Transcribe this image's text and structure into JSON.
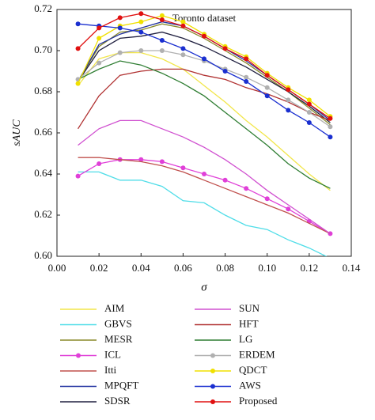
{
  "chart_data": {
    "type": "line",
    "title": "Toronto dataset",
    "x_label": "σ",
    "y_label": "sAUC",
    "x": [
      0.01,
      0.02,
      0.03,
      0.04,
      0.05,
      0.06,
      0.07,
      0.08,
      0.09,
      0.1,
      0.11,
      0.12,
      0.13
    ],
    "xlim": [
      0,
      0.14
    ],
    "xticks": [
      {
        "value": 0,
        "label": "0.00"
      },
      0.02,
      0.04,
      0.06,
      0.08,
      {
        "value": 0.1,
        "label": "0.10"
      },
      0.12,
      0.14
    ],
    "ylim": [
      0.6,
      0.72
    ],
    "yticks": [
      {
        "value": 0.6,
        "label": "0.60"
      },
      0.62,
      0.64,
      0.66,
      0.68,
      {
        "value": 0.7,
        "label": "0.70"
      },
      0.72
    ],
    "series": [
      {
        "name": "AIM",
        "color": "#f2e64a",
        "marker": false,
        "values": [
          0.683,
          0.696,
          0.699,
          0.699,
          0.696,
          0.691,
          0.683,
          0.675,
          0.666,
          0.658,
          0.649,
          0.64,
          0.632
        ]
      },
      {
        "name": "GBVS",
        "color": "#4fdde8",
        "marker": false,
        "values": [
          0.641,
          0.641,
          0.637,
          0.637,
          0.634,
          0.627,
          0.626,
          0.62,
          0.615,
          0.613,
          0.608,
          0.604,
          0.599
        ]
      },
      {
        "name": "MESR",
        "color": "#8a8a2a",
        "marker": false,
        "values": [
          0.685,
          0.702,
          0.709,
          0.71,
          0.713,
          0.711,
          0.706,
          0.7,
          0.694,
          0.687,
          0.68,
          0.672,
          0.664
        ]
      },
      {
        "name": "ICL",
        "color": "#e040d8",
        "marker": true,
        "values": [
          0.639,
          0.645,
          0.647,
          0.647,
          0.646,
          0.643,
          0.64,
          0.637,
          0.633,
          0.628,
          0.623,
          0.617,
          0.611
        ]
      },
      {
        "name": "Itti",
        "color": "#c0504d",
        "marker": false,
        "values": [
          0.648,
          0.648,
          0.647,
          0.646,
          0.644,
          0.641,
          0.637,
          0.633,
          0.629,
          0.625,
          0.621,
          0.616,
          0.611
        ]
      },
      {
        "name": "MPQFT",
        "color": "#2030a0",
        "marker": false,
        "values": [
          0.685,
          0.703,
          0.708,
          0.711,
          0.714,
          0.712,
          0.707,
          0.701,
          0.695,
          0.688,
          0.681,
          0.674,
          0.666
        ]
      },
      {
        "name": "SDSR",
        "color": "#202040",
        "marker": false,
        "values": [
          0.685,
          0.7,
          0.706,
          0.707,
          0.709,
          0.706,
          0.702,
          0.697,
          0.692,
          0.686,
          0.68,
          0.673,
          0.665
        ]
      },
      {
        "name": "SUN",
        "color": "#d050d0",
        "marker": false,
        "values": [
          0.654,
          0.662,
          0.666,
          0.666,
          0.662,
          0.658,
          0.653,
          0.647,
          0.64,
          0.632,
          0.625,
          0.618,
          0.611
        ]
      },
      {
        "name": "HFT",
        "color": "#b03030",
        "marker": false,
        "values": [
          0.662,
          0.678,
          0.688,
          0.69,
          0.691,
          0.691,
          0.688,
          0.686,
          0.682,
          0.679,
          0.675,
          0.67,
          0.666
        ]
      },
      {
        "name": "LG",
        "color": "#2e7d32",
        "marker": false,
        "values": [
          0.686,
          0.691,
          0.695,
          0.693,
          0.689,
          0.684,
          0.678,
          0.67,
          0.662,
          0.654,
          0.645,
          0.638,
          0.633
        ]
      },
      {
        "name": "ERDEM",
        "color": "#b0b0b0",
        "marker": true,
        "values": [
          0.686,
          0.694,
          0.699,
          0.7,
          0.7,
          0.698,
          0.695,
          0.691,
          0.687,
          0.682,
          0.676,
          0.67,
          0.663
        ]
      },
      {
        "name": "QDCT",
        "color": "#f0e000",
        "marker": true,
        "values": [
          0.684,
          0.706,
          0.712,
          0.714,
          0.717,
          0.714,
          0.708,
          0.702,
          0.697,
          0.689,
          0.682,
          0.676,
          0.668
        ]
      },
      {
        "name": "AWS",
        "color": "#1a2fd0",
        "marker": true,
        "values": [
          0.713,
          0.712,
          0.711,
          0.709,
          0.705,
          0.701,
          0.696,
          0.69,
          0.685,
          0.678,
          0.671,
          0.665,
          0.658
        ]
      },
      {
        "name": "Proposed",
        "color": "#e01010",
        "marker": true,
        "values": [
          0.701,
          0.711,
          0.716,
          0.718,
          0.715,
          0.712,
          0.707,
          0.701,
          0.696,
          0.688,
          0.681,
          0.674,
          0.667
        ]
      }
    ]
  }
}
